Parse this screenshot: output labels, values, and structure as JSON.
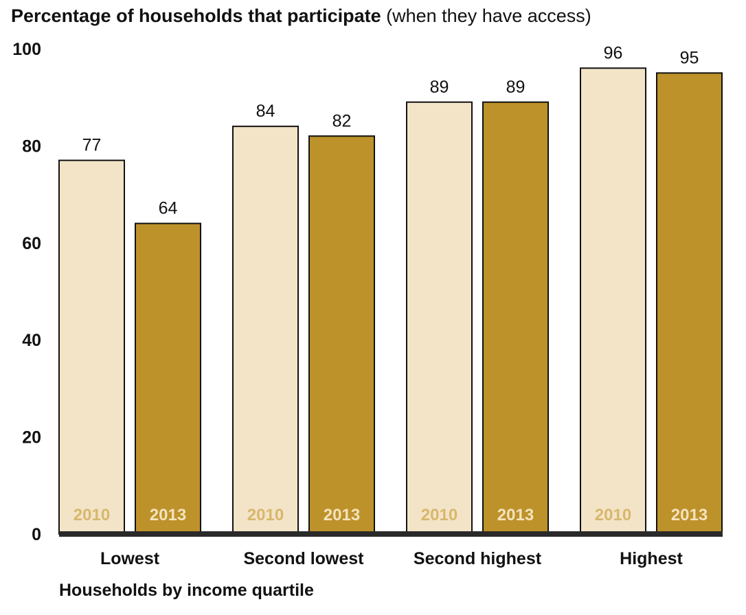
{
  "title_bold": "Percentage of households that participate",
  "title_rest": "(when they have access)",
  "chart_data": {
    "type": "bar",
    "categories": [
      "Lowest",
      "Second lowest",
      "Second highest",
      "Highest"
    ],
    "series": [
      {
        "name": "2010",
        "values": [
          77,
          84,
          89,
          96
        ]
      },
      {
        "name": "2013",
        "values": [
          64,
          82,
          89,
          95
        ]
      }
    ],
    "xlabel": "Households by income quartile",
    "ylabel": "",
    "ylim": [
      0,
      100
    ],
    "yticks": [
      0,
      20,
      40,
      60,
      80,
      100
    ],
    "grid": false,
    "legend": "series names shown inside bars at the base",
    "colors": {
      "2010": "#f3e4c8",
      "2013": "#bd922a",
      "baseline": "#2a2a2a"
    }
  }
}
